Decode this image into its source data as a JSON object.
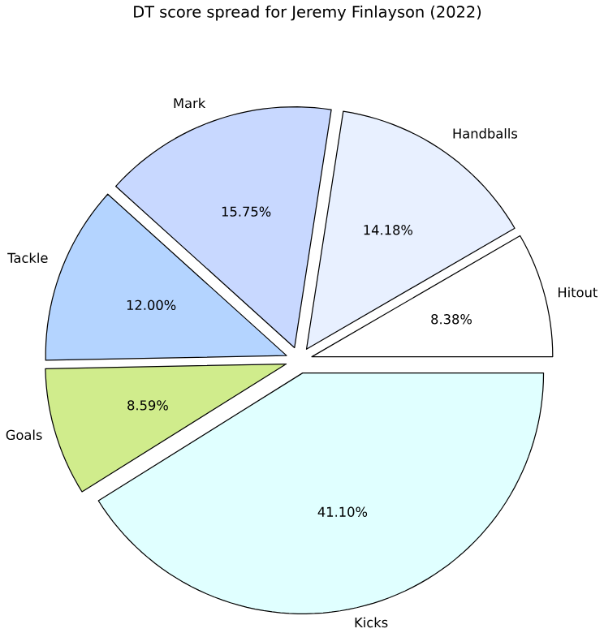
{
  "chart_data": {
    "type": "pie",
    "title": "DT score spread for Jeremy Finlayson (2022)",
    "categories": [
      "Hitout",
      "Handballs",
      "Mark",
      "Tackle",
      "Goals",
      "Kicks"
    ],
    "values": [
      8.38,
      14.18,
      15.75,
      12.0,
      8.59,
      41.1
    ],
    "value_labels": [
      "8.38%",
      "14.18%",
      "15.75%",
      "12.00%",
      "8.59%",
      "41.10%"
    ],
    "colors": [
      "#ffffff",
      "#e8f0ff",
      "#c8d8ff",
      "#b4d4ff",
      "#d0ec8c",
      "#e0ffff"
    ]
  }
}
